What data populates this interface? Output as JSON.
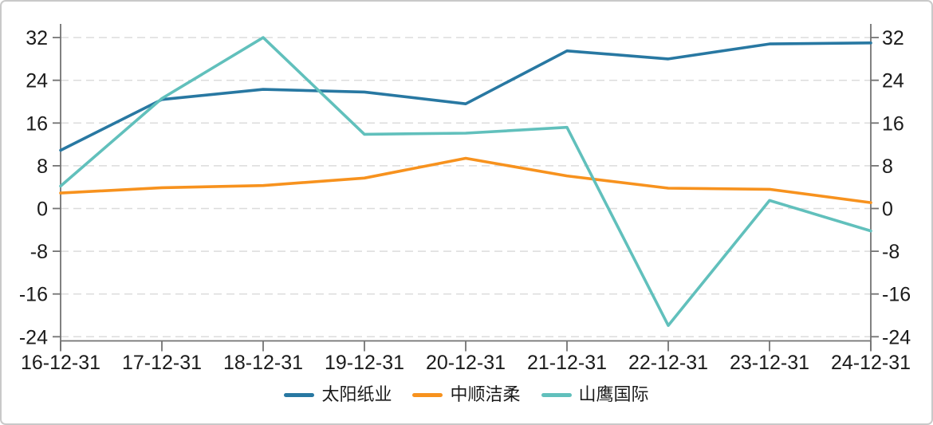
{
  "chart_data": {
    "type": "line",
    "title": "",
    "xlabel": "",
    "ylabel": "",
    "categories": [
      "16-12-31",
      "17-12-31",
      "18-12-31",
      "19-12-31",
      "20-12-31",
      "21-12-31",
      "22-12-31",
      "23-12-31",
      "24-12-31"
    ],
    "series": [
      {
        "name": "太阳纸业",
        "color": "#2878A2",
        "values": [
          10.9,
          20.4,
          22.3,
          21.8,
          19.6,
          29.5,
          28.0,
          30.8,
          31.0
        ]
      },
      {
        "name": "中顺洁柔",
        "color": "#F7921E",
        "values": [
          2.9,
          3.9,
          4.3,
          5.7,
          9.4,
          6.1,
          3.8,
          3.6,
          1.1
        ]
      },
      {
        "name": "山鹰国际",
        "color": "#61C0BC",
        "values": [
          4.2,
          20.6,
          32.0,
          13.9,
          14.1,
          15.2,
          -21.9,
          1.5,
          -4.2
        ]
      }
    ],
    "y_ticks": [
      32,
      24,
      16,
      8,
      0,
      -8,
      -16,
      -24
    ],
    "ylim": [
      -24.7,
      34.6
    ],
    "grid": "horizontal-dashed",
    "legend_position": "bottom"
  },
  "style_colors": {
    "axis": "#737373",
    "gridline": "#DCDCDC",
    "text": "#1B1B1B",
    "frame_border": "#C9C9C9",
    "background": "#FFFFFF"
  }
}
